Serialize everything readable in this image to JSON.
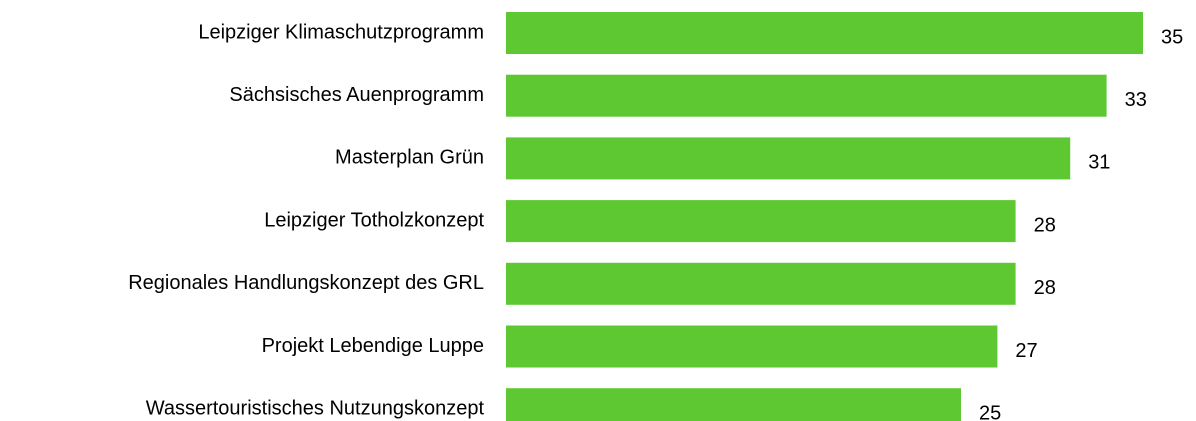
{
  "chart_data": {
    "type": "hbar",
    "categories": [
      "Leipziger Klimaschutzprogramm",
      "Sächsisches Auenprogramm",
      "Masterplan Grün",
      "Leipziger Totholzkonzept",
      "Regionales Handlungskonzept des GRL",
      "Projekt Lebendige Luppe",
      "Wassertouristisches Nutzungskonzept"
    ],
    "values": [
      35,
      33,
      31,
      28,
      28,
      27,
      25
    ],
    "color": "#5ec832",
    "xlim": [
      0,
      35
    ]
  }
}
